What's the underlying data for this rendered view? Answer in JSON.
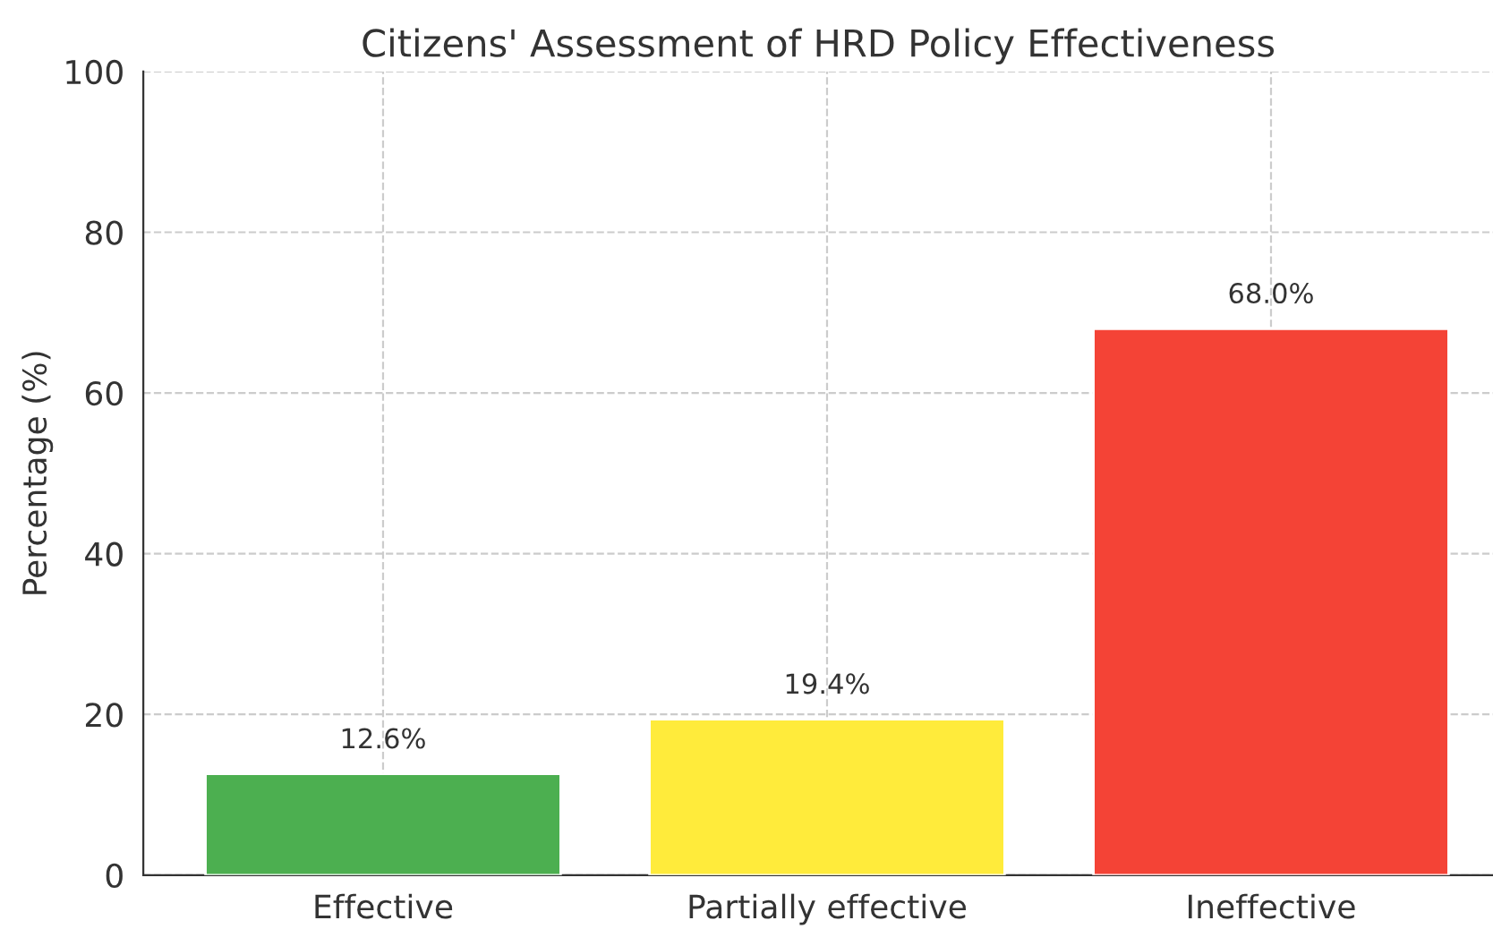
{
  "chart_data": {
    "type": "bar",
    "title": "Citizens' Assessment of HRD Policy Effectiveness",
    "ylabel": "Percentage (%)",
    "categories": [
      "Effective",
      "Partially effective",
      "Ineffective"
    ],
    "values": [
      12.6,
      19.4,
      68.0
    ],
    "value_labels": [
      "12.6%",
      "19.4%",
      "68.0%"
    ],
    "colors": [
      "#4caf50",
      "#ffeb3b",
      "#f44336"
    ],
    "ylim": [
      0,
      100
    ],
    "yticks": [
      0,
      20,
      40,
      60,
      80,
      100
    ],
    "grid": true
  }
}
